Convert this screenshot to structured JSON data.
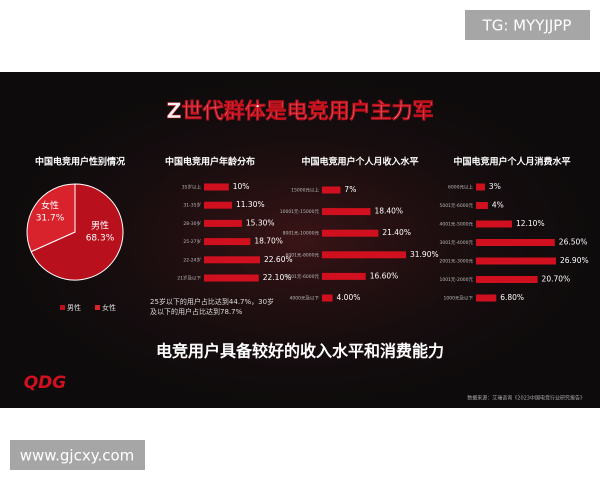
{
  "watermark": "TG: MYYJJPP",
  "site": "www.gjcxy.com",
  "slide": {
    "title": "Z世代群体是电竞用户主力军",
    "subtitle": "电竞用户具备较好的收入水平和消费能力",
    "source": "数据来源：艾瑞咨询《2023中国电竞行业研究报告》",
    "logo": "QDG"
  },
  "chart_data": [
    {
      "type": "pie",
      "title": "中国电竞用户性别情况",
      "categories": [
        "男性",
        "女性"
      ],
      "values": [
        68.3,
        31.7
      ],
      "value_labels": [
        "68.3%",
        "31.7%"
      ],
      "colors": [
        "#b8101c",
        "#d8222c"
      ],
      "legend": "bottom"
    },
    {
      "type": "bar",
      "orientation": "horizontal",
      "title": "中国电竞用户年龄分布",
      "categories": [
        "35岁以上",
        "31-35岁",
        "28-30岁",
        "25-27岁",
        "22-24岁",
        "21岁及以下"
      ],
      "values": [
        10,
        11.3,
        15.3,
        18.7,
        22.6,
        22.1
      ],
      "value_labels": [
        "10%",
        "11.30%",
        "15.30%",
        "18.70%",
        "22.60%",
        "22.10%"
      ],
      "color": "#d0101f",
      "annotation": "25岁以下的用户占比达到44.7%，30岁及以下的用户占比达到78.7%"
    },
    {
      "type": "bar",
      "orientation": "horizontal",
      "title": "中国电竞用户个人月收入水平",
      "categories": [
        "15000元以上",
        "10001元-15000元",
        "8001元-10000元",
        "6001元-8000元",
        "4001元-6000元",
        "4000元及以下"
      ],
      "values": [
        7,
        18.4,
        21.4,
        31.9,
        16.6,
        4.0
      ],
      "value_labels": [
        "7%",
        "18.40%",
        "21.40%",
        "31.90%",
        "16.60%",
        "4.00%"
      ],
      "color": "#d0101f"
    },
    {
      "type": "bar",
      "orientation": "horizontal",
      "title": "中国电竞用户个人月消费水平",
      "categories": [
        "6000元以上",
        "5001元-6000元",
        "4001元-5000元",
        "3001元-4000元",
        "2001元-3000元",
        "1001元-2000元",
        "1000元及以下"
      ],
      "values": [
        3,
        4,
        12.1,
        26.5,
        26.9,
        20.7,
        6.8
      ],
      "value_labels": [
        "3%",
        "4%",
        "12.10%",
        "26.50%",
        "26.90%",
        "20.70%",
        "6.80%"
      ],
      "color": "#d0101f"
    }
  ]
}
